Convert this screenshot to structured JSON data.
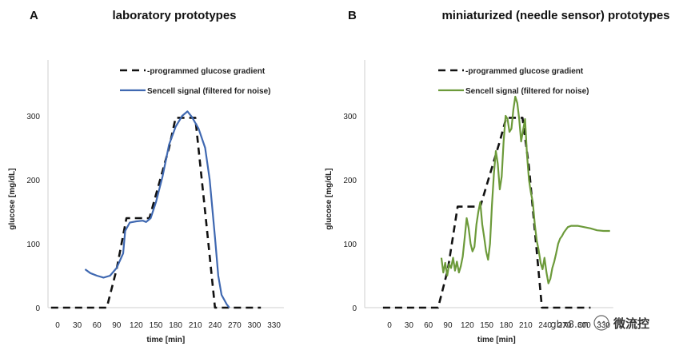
{
  "chart_data": [
    {
      "type": "line",
      "panel_letter": "A",
      "title": "laboratory prototypes",
      "xlabel": "time [min]",
      "ylabel": "glucose [mg/dL]",
      "xticks": [
        0,
        30,
        60,
        90,
        120,
        150,
        180,
        210,
        240,
        270,
        300,
        330
      ],
      "yticks": [
        0,
        100,
        200,
        300
      ],
      "xlim": [
        -15,
        345
      ],
      "ylim": [
        0,
        340
      ],
      "legend_position": "top-center",
      "series": [
        {
          "name": "programmed glucose gradient",
          "style": "dashed",
          "color": "#111111",
          "points": [
            [
              -10,
              0
            ],
            [
              75,
              0
            ],
            [
              90,
              60
            ],
            [
              105,
              140
            ],
            [
              140,
              140
            ],
            [
              170,
              250
            ],
            [
              180,
              297
            ],
            [
              210,
              297
            ],
            [
              225,
              150
            ],
            [
              240,
              0
            ],
            [
              310,
              0
            ]
          ]
        },
        {
          "name": "Sencell signal (filtered for noise)",
          "style": "solid",
          "color": "#3f68b1",
          "points": [
            [
              42,
              60
            ],
            [
              50,
              54
            ],
            [
              60,
              50
            ],
            [
              70,
              47
            ],
            [
              80,
              50
            ],
            [
              90,
              62
            ],
            [
              100,
              85
            ],
            [
              103,
              120
            ],
            [
              110,
              133
            ],
            [
              120,
              135
            ],
            [
              130,
              136
            ],
            [
              135,
              134
            ],
            [
              142,
              140
            ],
            [
              150,
              165
            ],
            [
              160,
              205
            ],
            [
              170,
              255
            ],
            [
              180,
              283
            ],
            [
              190,
              300
            ],
            [
              198,
              307
            ],
            [
              205,
              298
            ],
            [
              215,
              280
            ],
            [
              225,
              250
            ],
            [
              232,
              200
            ],
            [
              240,
              110
            ],
            [
              245,
              50
            ],
            [
              250,
              20
            ],
            [
              258,
              5
            ],
            [
              262,
              0
            ]
          ]
        }
      ]
    },
    {
      "type": "line",
      "panel_letter": "B",
      "title": "miniaturized (needle sensor) prototypes",
      "xlabel": "time [min]",
      "ylabel": "glucose [mg/dL]",
      "xticks": [
        0,
        30,
        60,
        90,
        120,
        150,
        180,
        210,
        240,
        270,
        300,
        330
      ],
      "yticks": [
        0,
        100,
        200,
        300
      ],
      "xlim": [
        -15,
        345
      ],
      "ylim": [
        0,
        340
      ],
      "legend_position": "top-center",
      "series": [
        {
          "name": "programmed glucose gradient",
          "style": "dashed",
          "color": "#111111",
          "points": [
            [
              -10,
              0
            ],
            [
              75,
              0
            ],
            [
              90,
              60
            ],
            [
              105,
              158
            ],
            [
              140,
              158
            ],
            [
              170,
              260
            ],
            [
              180,
              297
            ],
            [
              205,
              297
            ],
            [
              215,
              220
            ],
            [
              225,
              110
            ],
            [
              235,
              0
            ],
            [
              310,
              0
            ]
          ]
        },
        {
          "name": "Sencell signal (filtered for noise)",
          "style": "solid",
          "color": "#6c9a3a",
          "points": [
            [
              80,
              78
            ],
            [
              83,
              55
            ],
            [
              86,
              70
            ],
            [
              89,
              50
            ],
            [
              92,
              68
            ],
            [
              95,
              62
            ],
            [
              98,
              78
            ],
            [
              101,
              58
            ],
            [
              104,
              72
            ],
            [
              107,
              55
            ],
            [
              110,
              65
            ],
            [
              113,
              80
            ],
            [
              116,
              110
            ],
            [
              119,
              140
            ],
            [
              122,
              125
            ],
            [
              125,
              100
            ],
            [
              128,
              88
            ],
            [
              131,
              95
            ],
            [
              134,
              130
            ],
            [
              137,
              150
            ],
            [
              140,
              165
            ],
            [
              143,
              130
            ],
            [
              146,
              110
            ],
            [
              149,
              88
            ],
            [
              152,
              75
            ],
            [
              155,
              100
            ],
            [
              158,
              160
            ],
            [
              161,
              210
            ],
            [
              164,
              245
            ],
            [
              167,
              225
            ],
            [
              170,
              185
            ],
            [
              173,
              205
            ],
            [
              176,
              260
            ],
            [
              179,
              300
            ],
            [
              182,
              295
            ],
            [
              185,
              275
            ],
            [
              188,
              280
            ],
            [
              191,
              310
            ],
            [
              194,
              330
            ],
            [
              197,
              320
            ],
            [
              200,
              295
            ],
            [
              203,
              260
            ],
            [
              206,
              278
            ],
            [
              209,
              295
            ],
            [
              212,
              240
            ],
            [
              215,
              200
            ],
            [
              218,
              180
            ],
            [
              221,
              165
            ],
            [
              224,
              130
            ],
            [
              227,
              105
            ],
            [
              230,
              90
            ],
            [
              233,
              70
            ],
            [
              236,
              60
            ],
            [
              239,
              78
            ],
            [
              242,
              55
            ],
            [
              245,
              38
            ],
            [
              248,
              45
            ],
            [
              251,
              62
            ],
            [
              254,
              72
            ],
            [
              257,
              85
            ],
            [
              260,
              100
            ],
            [
              263,
              108
            ],
            [
              266,
              112
            ],
            [
              269,
              118
            ],
            [
              272,
              122
            ],
            [
              275,
              126
            ],
            [
              280,
              128
            ],
            [
              290,
              128
            ],
            [
              300,
              126
            ],
            [
              310,
              124
            ],
            [
              320,
              121
            ],
            [
              330,
              120
            ],
            [
              340,
              120
            ]
          ]
        }
      ]
    }
  ],
  "watermark": {
    "site": "gbx8.cn",
    "brand": "微流控"
  }
}
